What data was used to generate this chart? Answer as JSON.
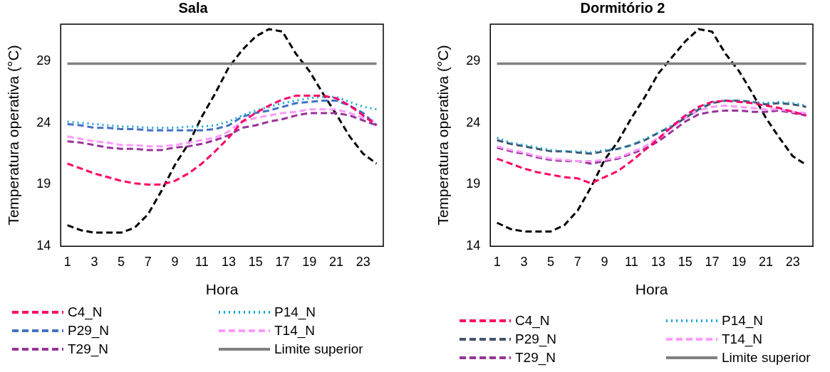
{
  "chart_data": [
    {
      "type": "line",
      "title": "Sala",
      "xlabel": "Hora",
      "ylabel": "Temperatura operativa (°C)",
      "x": [
        1,
        2,
        3,
        4,
        5,
        6,
        7,
        8,
        9,
        10,
        11,
        12,
        13,
        14,
        15,
        16,
        17,
        18,
        19,
        20,
        21,
        22,
        23,
        24
      ],
      "xlim": [
        0.5,
        24.5
      ],
      "xticks": [
        1,
        3,
        5,
        7,
        9,
        11,
        13,
        15,
        17,
        19,
        21,
        23
      ],
      "ylim": [
        14,
        32
      ],
      "yticks": [
        14,
        19,
        24,
        29
      ],
      "grid": false,
      "legend": "bottom",
      "marker": "none",
      "series": [
        {
          "name": "C4_N",
          "color": "#ff0066",
          "line_style": "dashed",
          "values": [
            20.7,
            20.3,
            19.9,
            19.6,
            19.3,
            19.1,
            19.0,
            19.0,
            19.3,
            19.9,
            20.7,
            21.7,
            22.8,
            24.1,
            24.8,
            25.4,
            25.9,
            26.2,
            26.2,
            26.2,
            26.0,
            25.4,
            24.6,
            23.8
          ]
        },
        {
          "name": "P14_N",
          "color": "#1aa3d9",
          "line_style": "dotted",
          "values": [
            24.1,
            24.0,
            23.9,
            23.8,
            23.7,
            23.7,
            23.6,
            23.6,
            23.6,
            23.7,
            23.7,
            23.8,
            24.1,
            24.6,
            25.0,
            25.3,
            25.6,
            25.8,
            26.0,
            26.1,
            26.1,
            25.7,
            25.3,
            25.1
          ]
        },
        {
          "name": "P29_N",
          "color": "#4472c4",
          "line_style": "dashed",
          "values": [
            23.9,
            23.8,
            23.6,
            23.6,
            23.5,
            23.5,
            23.4,
            23.4,
            23.4,
            23.4,
            23.4,
            23.5,
            23.8,
            24.5,
            24.8,
            25.0,
            25.3,
            25.6,
            25.7,
            25.8,
            25.8,
            25.4,
            24.8,
            23.8
          ]
        },
        {
          "name": "T14_N",
          "color": "#ff99ff",
          "line_style": "dashed",
          "values": [
            22.9,
            22.7,
            22.5,
            22.4,
            22.2,
            22.2,
            22.1,
            22.1,
            22.2,
            22.4,
            22.6,
            22.8,
            23.3,
            24.1,
            24.4,
            24.6,
            24.8,
            24.9,
            25.1,
            25.1,
            25.1,
            24.8,
            24.4,
            24.1
          ]
        },
        {
          "name": "T29_N",
          "color": "#993399",
          "line_style": "dashed",
          "values": [
            22.5,
            22.4,
            22.2,
            22.0,
            21.9,
            21.9,
            21.8,
            21.8,
            22.0,
            22.1,
            22.3,
            22.6,
            23.0,
            23.6,
            23.8,
            24.1,
            24.3,
            24.6,
            24.8,
            24.8,
            24.8,
            24.6,
            24.2,
            23.8
          ]
        },
        {
          "name": "Limite superior",
          "color": "#808080",
          "line_style": "solid",
          "values": [
            28.8,
            28.8,
            28.8,
            28.8,
            28.8,
            28.8,
            28.8,
            28.8,
            28.8,
            28.8,
            28.8,
            28.8,
            28.8,
            28.8,
            28.8,
            28.8,
            28.8,
            28.8,
            28.8,
            28.8,
            28.8,
            28.8,
            28.8,
            28.8
          ]
        },
        {
          "color": "#000000",
          "line_style": "dashed",
          "values": [
            15.7,
            15.3,
            15.1,
            15.1,
            15.1,
            15.5,
            16.6,
            18.5,
            20.6,
            22.3,
            24.5,
            26.4,
            28.5,
            29.9,
            31.0,
            31.6,
            31.4,
            29.6,
            28.2,
            26.4,
            24.7,
            22.9,
            21.5,
            20.7
          ]
        }
      ]
    },
    {
      "type": "line",
      "title": "Dormitório 2",
      "xlabel": "Hora",
      "ylabel": "Temperatura operativa (°C)",
      "x": [
        1,
        2,
        3,
        4,
        5,
        6,
        7,
        8,
        9,
        10,
        11,
        12,
        13,
        14,
        15,
        16,
        17,
        18,
        19,
        20,
        21,
        22,
        23,
        24
      ],
      "xlim": [
        0.5,
        24.5
      ],
      "xticks": [
        1,
        3,
        5,
        7,
        9,
        11,
        13,
        15,
        17,
        19,
        21,
        23
      ],
      "ylim": [
        14,
        32
      ],
      "yticks": [
        14,
        19,
        24,
        29
      ],
      "grid": false,
      "legend": "bottom",
      "marker": "none",
      "series": [
        {
          "name": "C4_N",
          "color": "#ff0066",
          "line_style": "dashed",
          "values": [
            21.1,
            20.7,
            20.3,
            20.0,
            19.8,
            19.6,
            19.5,
            19.1,
            19.6,
            20.1,
            20.9,
            21.8,
            22.7,
            23.7,
            24.6,
            25.3,
            25.7,
            25.8,
            25.7,
            25.6,
            25.4,
            25.2,
            24.9,
            24.6
          ]
        },
        {
          "name": "P14_N",
          "color": "#1aa3d9",
          "line_style": "dotted",
          "values": [
            22.8,
            22.4,
            22.2,
            22.0,
            21.8,
            21.7,
            21.7,
            21.6,
            21.8,
            21.9,
            22.2,
            22.7,
            23.2,
            23.8,
            24.5,
            25.2,
            25.7,
            25.8,
            25.8,
            25.7,
            25.6,
            25.7,
            25.6,
            25.4
          ]
        },
        {
          "name": "P29_N",
          "color": "#44546a",
          "line_style": "dashed",
          "values": [
            22.6,
            22.3,
            22.1,
            21.9,
            21.7,
            21.7,
            21.6,
            21.5,
            21.7,
            21.9,
            22.2,
            22.6,
            23.2,
            23.7,
            24.4,
            25.1,
            25.6,
            25.8,
            25.8,
            25.7,
            25.5,
            25.6,
            25.5,
            25.3
          ]
        },
        {
          "name": "T14_N",
          "color": "#ff99ff",
          "line_style": "dashed",
          "values": [
            22.1,
            21.8,
            21.6,
            21.3,
            21.1,
            21.0,
            20.9,
            20.9,
            21.0,
            21.2,
            21.6,
            22.1,
            22.8,
            23.6,
            24.4,
            25.0,
            25.3,
            25.4,
            25.3,
            25.2,
            25.1,
            25.1,
            24.9,
            24.8
          ]
        },
        {
          "name": "T29_N",
          "color": "#993399",
          "line_style": "dashed",
          "values": [
            22.0,
            21.7,
            21.5,
            21.2,
            21.0,
            20.9,
            20.9,
            20.7,
            20.9,
            21.1,
            21.5,
            21.9,
            22.5,
            23.3,
            24.1,
            24.7,
            24.9,
            25.0,
            25.0,
            24.9,
            24.9,
            25.0,
            24.8,
            24.6
          ]
        },
        {
          "name": "Limite superior",
          "color": "#808080",
          "line_style": "solid",
          "values": [
            28.8,
            28.8,
            28.8,
            28.8,
            28.8,
            28.8,
            28.8,
            28.8,
            28.8,
            28.8,
            28.8,
            28.8,
            28.8,
            28.8,
            28.8,
            28.8,
            28.8,
            28.8,
            28.8,
            28.8,
            28.8,
            28.8,
            28.8,
            28.8
          ]
        },
        {
          "color": "#000000",
          "line_style": "dashed",
          "values": [
            15.9,
            15.4,
            15.2,
            15.2,
            15.2,
            15.7,
            16.9,
            18.8,
            21.0,
            22.5,
            24.4,
            26.1,
            28.0,
            29.3,
            30.6,
            31.6,
            31.4,
            29.6,
            28.2,
            26.4,
            24.4,
            22.8,
            21.3,
            20.6
          ]
        }
      ]
    }
  ]
}
